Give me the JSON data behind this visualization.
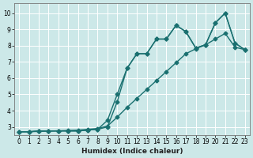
{
  "xlabel": "Humidex (Indice chaleur)",
  "bg_color": "#cce8e8",
  "grid_color": "#ffffff",
  "line_color": "#1a7070",
  "xlim": [
    -0.5,
    23.5
  ],
  "ylim": [
    2.5,
    10.6
  ],
  "xticks": [
    0,
    1,
    2,
    3,
    4,
    5,
    6,
    7,
    8,
    9,
    10,
    11,
    12,
    13,
    14,
    15,
    16,
    17,
    18,
    19,
    20,
    21,
    22,
    23
  ],
  "yticks": [
    3,
    4,
    5,
    6,
    7,
    8,
    9,
    10
  ],
  "line1_x": [
    0,
    1,
    2,
    3,
    4,
    5,
    6,
    7,
    8,
    9,
    10,
    11,
    12,
    13,
    14,
    15,
    16,
    17,
    18,
    19,
    20,
    21,
    22,
    23
  ],
  "line1_y": [
    2.7,
    2.7,
    2.75,
    2.75,
    2.75,
    2.75,
    2.75,
    2.8,
    2.85,
    3.4,
    5.0,
    6.6,
    7.5,
    7.5,
    8.4,
    8.4,
    9.25,
    8.85,
    7.85,
    8.05,
    9.4,
    10.0,
    8.15,
    7.75
  ],
  "line2_x": [
    0,
    1,
    2,
    3,
    4,
    5,
    6,
    7,
    8,
    9,
    10,
    11,
    12,
    13,
    14,
    15,
    16,
    17,
    18,
    19,
    20,
    21,
    22,
    23
  ],
  "line2_y": [
    2.7,
    2.7,
    2.75,
    2.75,
    2.75,
    2.75,
    2.75,
    2.8,
    2.85,
    3.0,
    4.55,
    6.6,
    7.5,
    7.5,
    8.4,
    8.4,
    9.25,
    8.85,
    7.85,
    8.05,
    9.4,
    10.0,
    8.15,
    7.75
  ],
  "line3_x": [
    0,
    1,
    2,
    3,
    4,
    5,
    6,
    7,
    8,
    9,
    10,
    11,
    12,
    13,
    14,
    15,
    16,
    17,
    18,
    19,
    20,
    21,
    22,
    23
  ],
  "line3_y": [
    2.7,
    2.7,
    2.72,
    2.74,
    2.76,
    2.78,
    2.8,
    2.85,
    2.9,
    3.05,
    3.6,
    4.2,
    4.75,
    5.3,
    5.85,
    6.4,
    6.95,
    7.5,
    7.8,
    8.05,
    8.4,
    8.75,
    7.9,
    7.75
  ],
  "marker": "D",
  "markersize": 2.5,
  "linewidth": 1.0,
  "tick_fontsize": 5.5,
  "xlabel_fontsize": 6.5
}
